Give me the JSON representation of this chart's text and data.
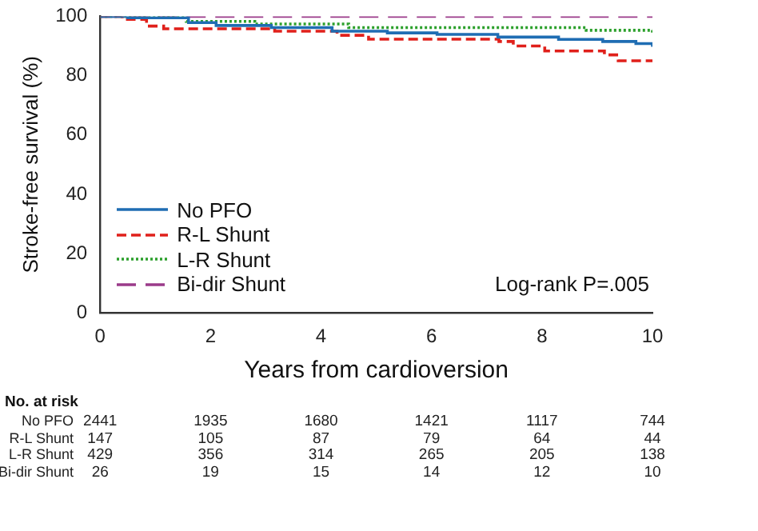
{
  "chart_data": {
    "type": "step",
    "xlabel": "Years from cardioversion",
    "ylabel": "Stroke-free survival (%)",
    "xlim": [
      0,
      10
    ],
    "xticks": [
      0,
      2,
      4,
      6,
      8,
      10
    ],
    "ylim": [
      0,
      100
    ],
    "yticks": [
      0,
      20,
      40,
      60,
      80,
      100
    ],
    "grid": false,
    "legend": "bottom left",
    "marker": "none",
    "series": [
      {
        "name": "No PFO",
        "color": "#1f6db3",
        "line_style": "solid",
        "x": [
          0,
          0.5,
          1.6,
          2.1,
          3.1,
          4.2,
          5.2,
          6.1,
          7.2,
          8.3,
          9.1,
          9.7,
          10
        ],
        "values": [
          100,
          99.5,
          97.9,
          96.9,
          96.2,
          95,
          94.4,
          93.9,
          93,
          92.2,
          91.5,
          90.8,
          89.7
        ]
      },
      {
        "name": "R-L Shunt",
        "color": "#e0201b",
        "line_style": "dashed",
        "x": [
          0,
          0.4,
          0.84,
          1.15,
          3.16,
          4.29,
          4.86,
          7.22,
          7.48,
          8.05,
          9.13,
          9.38,
          10
        ],
        "values": [
          100,
          99,
          96.7,
          95.8,
          95,
          93.6,
          92.3,
          91.5,
          90,
          88.3,
          87,
          85,
          85
        ]
      },
      {
        "name": "L-R Shunt",
        "color": "#2ca02c",
        "line_style": "dotted",
        "x": [
          0,
          1.56,
          2.8,
          4.5,
          8.8,
          10
        ],
        "values": [
          100,
          98.3,
          97.4,
          96.2,
          95.3,
          94.3
        ]
      },
      {
        "name": "Bi-dir Shunt",
        "color": "#9b3b8a",
        "line_style": "dashed",
        "x": [
          0,
          10
        ],
        "values": [
          100,
          100
        ]
      }
    ],
    "annotations": [
      "Log-rank P=.005",
      "No. at risk",
      "2441",
      "1935",
      "1680",
      "1421",
      "1117",
      "744",
      "147",
      "105",
      "87",
      "79",
      "64",
      "44",
      "429",
      "356",
      "314",
      "265",
      "205",
      "138",
      "26",
      "19",
      "15",
      "14",
      "12",
      "10"
    ]
  }
}
